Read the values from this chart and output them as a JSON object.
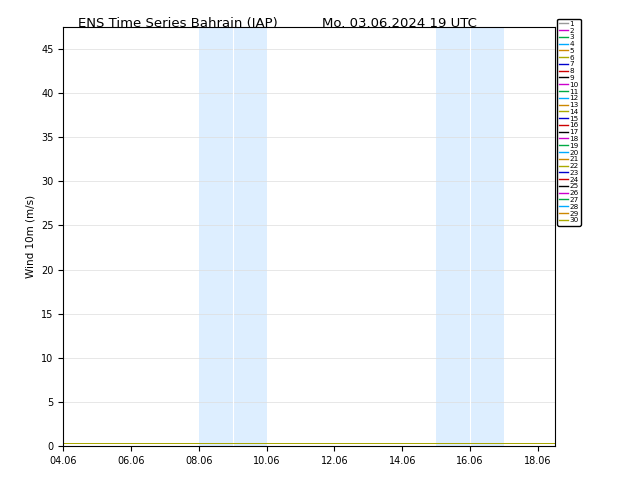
{
  "title_left": "ENS Time Series Bahrain (IAP)",
  "title_right": "Mo. 03.06.2024 19 UTC",
  "ylabel": "Wind 10m (m/s)",
  "ylim": [
    0,
    47.5
  ],
  "yticks": [
    0,
    5,
    10,
    15,
    20,
    25,
    30,
    35,
    40,
    45
  ],
  "xlim": [
    0,
    14.5
  ],
  "xtick_labels": [
    "04.06",
    "06.06",
    "08.06",
    "10.06",
    "12.06",
    "14.06",
    "16.06",
    "18.06"
  ],
  "xtick_positions": [
    0,
    2,
    4,
    6,
    8,
    10,
    12,
    14
  ],
  "shading_bands": [
    [
      4,
      5
    ],
    [
      5,
      6
    ],
    [
      11,
      12
    ],
    [
      12,
      13
    ]
  ],
  "member_colors": [
    "#999999",
    "#cc00cc",
    "#00aa44",
    "#00aaff",
    "#cc8800",
    "#aaaa00",
    "#0000cc",
    "#cc0000",
    "#000000",
    "#cc00cc",
    "#00aa44",
    "#00aaff",
    "#cc8800",
    "#aaaa00",
    "#0000cc",
    "#cc0000",
    "#000000",
    "#cc00cc",
    "#00aa44",
    "#00aaff",
    "#cc8800",
    "#aaaa00",
    "#0000cc",
    "#cc0000",
    "#000000",
    "#cc00cc",
    "#00aa44",
    "#00aaff",
    "#cc8800",
    "#aaaa00"
  ],
  "n_members": 30,
  "background_color": "#ffffff",
  "shading_color": "#ddeeff",
  "title_fontsize": 9.5,
  "axis_fontsize": 7.5,
  "tick_fontsize": 7
}
